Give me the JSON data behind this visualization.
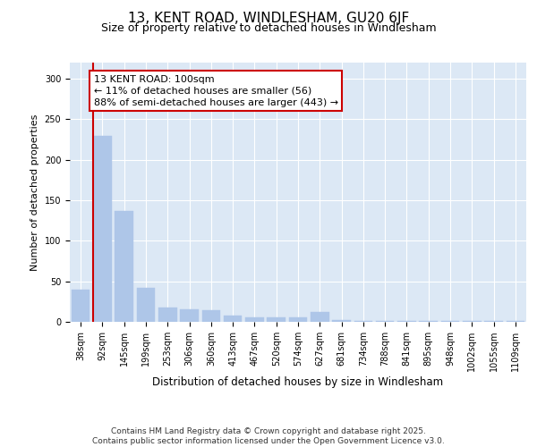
{
  "title": "13, KENT ROAD, WINDLESHAM, GU20 6JF",
  "subtitle": "Size of property relative to detached houses in Windlesham",
  "xlabel": "Distribution of detached houses by size in Windlesham",
  "ylabel": "Number of detached properties",
  "categories": [
    "38sqm",
    "92sqm",
    "145sqm",
    "199sqm",
    "253sqm",
    "306sqm",
    "360sqm",
    "413sqm",
    "467sqm",
    "520sqm",
    "574sqm",
    "627sqm",
    "681sqm",
    "734sqm",
    "788sqm",
    "841sqm",
    "895sqm",
    "948sqm",
    "1002sqm",
    "1055sqm",
    "1109sqm"
  ],
  "values": [
    40,
    230,
    137,
    42,
    18,
    16,
    14,
    8,
    5,
    5,
    5,
    12,
    2,
    1,
    1,
    1,
    1,
    1,
    1,
    1,
    1
  ],
  "bar_color": "#aec6e8",
  "bar_edgecolor": "#aec6e8",
  "vline_x_index": 1,
  "vline_color": "#cc0000",
  "annotation_title": "13 KENT ROAD: 100sqm",
  "annotation_line1": "← 11% of detached houses are smaller (56)",
  "annotation_line2": "88% of semi-detached houses are larger (443) →",
  "annotation_box_facecolor": "white",
  "annotation_box_edgecolor": "#cc0000",
  "ylim": [
    0,
    320
  ],
  "yticks": [
    0,
    50,
    100,
    150,
    200,
    250,
    300
  ],
  "background_color": "#dce8f5",
  "grid_color": "white",
  "footer_line1": "Contains HM Land Registry data © Crown copyright and database right 2025.",
  "footer_line2": "Contains public sector information licensed under the Open Government Licence v3.0.",
  "title_fontsize": 11,
  "subtitle_fontsize": 9,
  "xlabel_fontsize": 8.5,
  "ylabel_fontsize": 8,
  "tick_fontsize": 7,
  "footer_fontsize": 6.5,
  "annotation_fontsize": 8
}
